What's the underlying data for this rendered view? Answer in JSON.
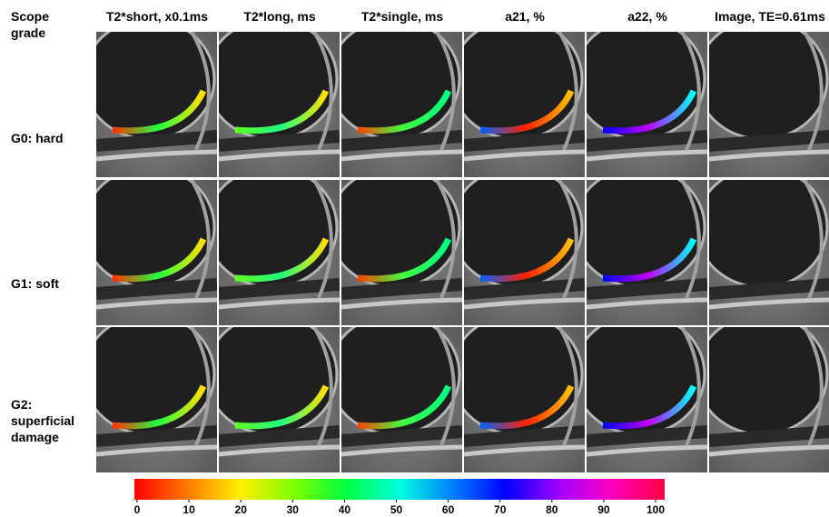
{
  "header": {
    "corner": "Scope grade",
    "columns": [
      "T2*short, x0.1ms",
      "T2*long, ms",
      "T2*single, ms",
      "a21, %",
      "a22, %",
      "Image, TE=0.61ms"
    ]
  },
  "rows": [
    {
      "label": "G0: hard"
    },
    {
      "label": "G1: soft"
    },
    {
      "label": "G2: superficial damage"
    }
  ],
  "colorbar": {
    "range": [
      0,
      100
    ],
    "ticks": [
      0,
      10,
      20,
      30,
      40,
      50,
      60,
      70,
      80,
      90,
      100
    ]
  }
}
